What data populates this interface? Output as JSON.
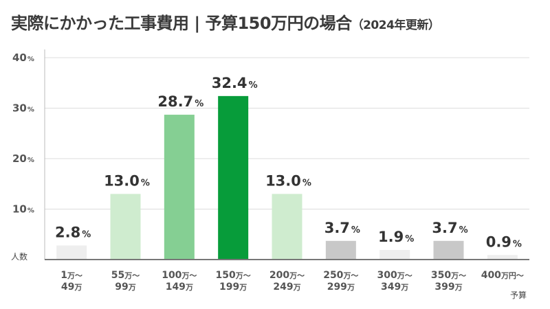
{
  "title": {
    "main": "実際にかかった工事費用 | 予算150万円の場合",
    "sub": "（2024年更新）"
  },
  "chart_data": {
    "type": "bar",
    "categories": [
      {
        "line1": "1",
        "unit1": "万〜",
        "line2": "49",
        "unit2": "万"
      },
      {
        "line1": "55",
        "unit1": "万〜",
        "line2": "99",
        "unit2": "万"
      },
      {
        "line1": "100",
        "unit1": "万〜",
        "line2": "149",
        "unit2": "万"
      },
      {
        "line1": "150",
        "unit1": "万〜",
        "line2": "199",
        "unit2": "万"
      },
      {
        "line1": "200",
        "unit1": "万〜",
        "line2": "249",
        "unit2": "万"
      },
      {
        "line1": "250",
        "unit1": "万〜",
        "line2": "299",
        "unit2": "万"
      },
      {
        "line1": "300",
        "unit1": "万〜",
        "line2": "349",
        "unit2": "万"
      },
      {
        "line1": "350",
        "unit1": "万〜",
        "line2": "399",
        "unit2": "万"
      },
      {
        "line1": "400",
        "unit1": "万円〜",
        "line2": "",
        "unit2": ""
      }
    ],
    "values": [
      2.8,
      13.0,
      28.7,
      32.4,
      13.0,
      3.7,
      1.9,
      3.7,
      0.9
    ],
    "value_labels": [
      "2.8",
      "13.0",
      "28.7",
      "32.4",
      "13.0",
      "3.7",
      "1.9",
      "3.7",
      "0.9"
    ],
    "value_suffix": "%",
    "bar_colors": [
      "#eeeeee",
      "#cfeccf",
      "#85cf93",
      "#079c3a",
      "#cfeccf",
      "#c8c8c8",
      "#eeeeee",
      "#c8c8c8",
      "#eeeeee"
    ],
    "yticks": [
      "10",
      "20",
      "30",
      "40"
    ],
    "ytick_values": [
      10,
      20,
      30,
      40
    ],
    "ytick_suffix": "%",
    "ylim": [
      0,
      40
    ],
    "ylabel": "人数",
    "xlabel": "予算",
    "grid": true
  }
}
